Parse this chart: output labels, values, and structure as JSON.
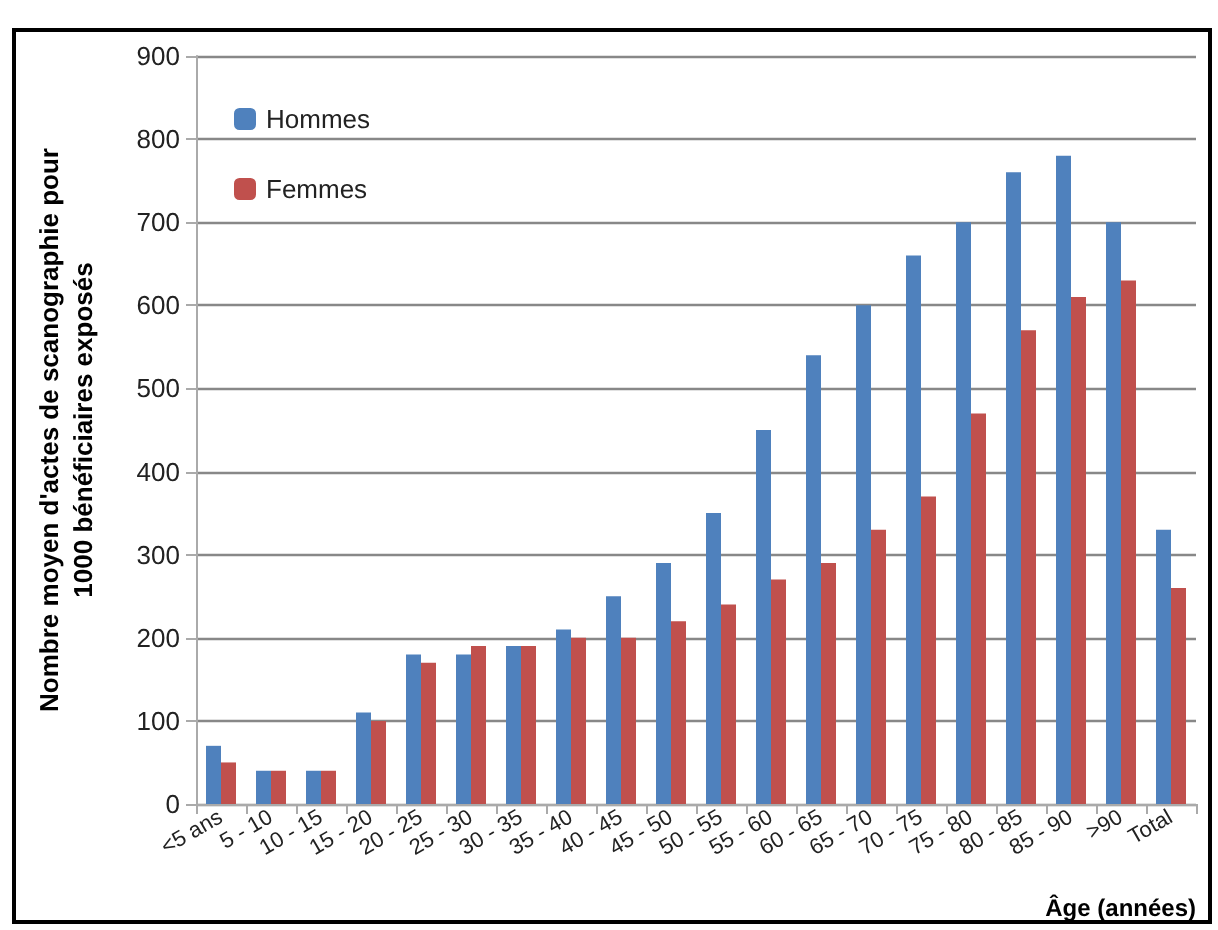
{
  "chart_data": {
    "type": "bar",
    "xlabel": "Âge (années)",
    "ylabel": "Nombre moyen d'actes de scanographie pour\n1000 bénéficiaires exposés",
    "categories": [
      "<5 ans",
      "5 - 10",
      "10 - 15",
      "15 - 20",
      "20 - 25",
      "25 - 30",
      "30 - 35",
      "35 - 40",
      "40 - 45",
      "45 - 50",
      "50 - 55",
      "55 - 60",
      "60 - 65",
      "65 - 70",
      "70 - 75",
      "75 - 80",
      "80 - 85",
      "85 - 90",
      ">90",
      "Total"
    ],
    "series": [
      {
        "name": "Hommes",
        "color": "#4f81bd",
        "values": [
          70,
          40,
          40,
          110,
          180,
          180,
          190,
          210,
          250,
          290,
          350,
          450,
          540,
          600,
          660,
          700,
          760,
          780,
          700,
          330
        ]
      },
      {
        "name": "Femmes",
        "color": "#c0504d",
        "values": [
          50,
          40,
          40,
          100,
          170,
          190,
          190,
          200,
          200,
          220,
          240,
          270,
          290,
          330,
          370,
          470,
          570,
          610,
          630,
          260
        ]
      }
    ],
    "ylim": [
      0,
      900
    ],
    "yticks": [
      0,
      100,
      200,
      300,
      400,
      500,
      600,
      700,
      800,
      900
    ],
    "grid": "y",
    "legend": "top left"
  }
}
